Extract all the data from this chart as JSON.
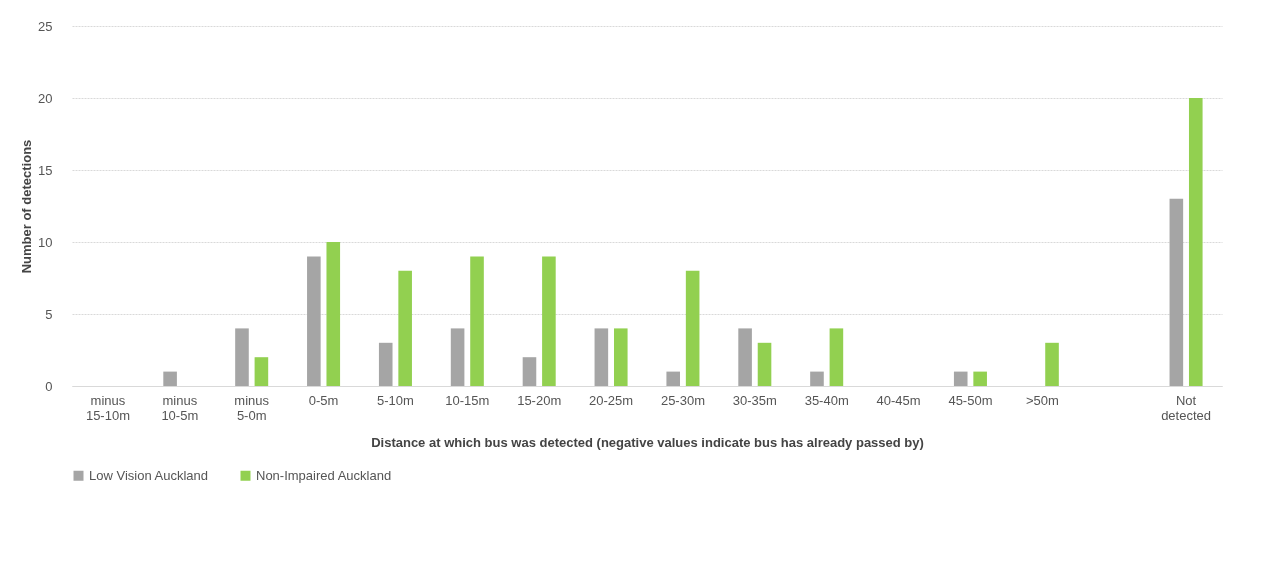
{
  "chart_data": {
    "type": "bar",
    "xlabel": "Distance at which bus was detected (negative values indicate bus has already passed by)",
    "ylabel": "Number of detections",
    "categories": [
      "minus 15-10m",
      "minus 10-5m",
      "minus 5-0m",
      "0-5m",
      "5-10m",
      "10-15m",
      "15-20m",
      "20-25m",
      "25-30m",
      "30-35m",
      "35-40m",
      "40-45m",
      "45-50m",
      ">50m",
      null,
      "Not detected"
    ],
    "series": [
      {
        "name": "Low Vision Auckland",
        "color": "#a5a5a5",
        "values": [
          0,
          1,
          4,
          9,
          3,
          4,
          2,
          4,
          1,
          4,
          1,
          0,
          1,
          0,
          0,
          13
        ]
      },
      {
        "name": "Non-Impaired Auckland",
        "color": "#92d050",
        "values": [
          0,
          0,
          2,
          10,
          8,
          9,
          9,
          4,
          8,
          3,
          4,
          0,
          1,
          3,
          0,
          20
        ]
      }
    ],
    "ylim": [
      0,
      25
    ],
    "yticks": [
      0,
      5,
      10,
      15,
      20,
      25
    ],
    "grid": "y",
    "legend": "bottom"
  }
}
